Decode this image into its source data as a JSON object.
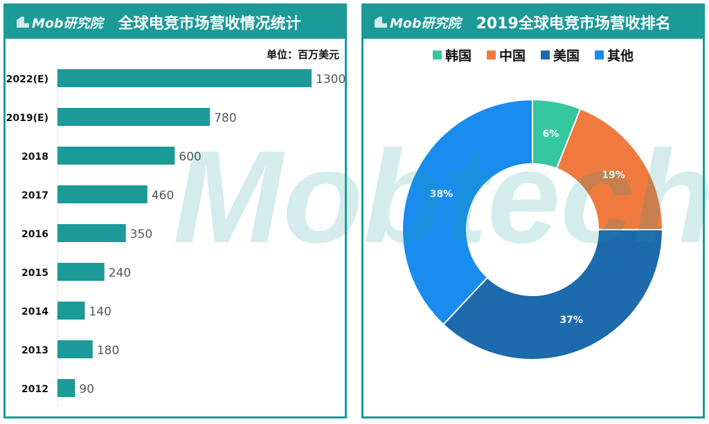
{
  "logo_text": "Mob研究院",
  "watermark": "Mobtech",
  "chart_data": [
    {
      "type": "bar",
      "orientation": "horizontal",
      "title": "全球电竞市场营收情况统计",
      "unit_label": "单位：百万美元",
      "categories": [
        "2022(E)",
        "2019(E)",
        "2018",
        "2017",
        "2016",
        "2015",
        "2014",
        "2013",
        "2012"
      ],
      "values": [
        1300,
        780,
        600,
        460,
        350,
        240,
        140,
        180,
        90
      ],
      "color": "#1b9a98"
    },
    {
      "type": "pie",
      "donut": true,
      "title": "2019全球电竞市场营收排名",
      "legend_position": "top",
      "labels": [
        "韩国",
        "中国",
        "美国",
        "其他"
      ],
      "values": [
        6,
        19,
        37,
        38
      ],
      "value_labels": [
        "6%",
        "19%",
        "37%",
        "38%"
      ],
      "colors": [
        "#34c7a0",
        "#f07a3e",
        "#1d6aad",
        "#1a8cef"
      ]
    }
  ]
}
